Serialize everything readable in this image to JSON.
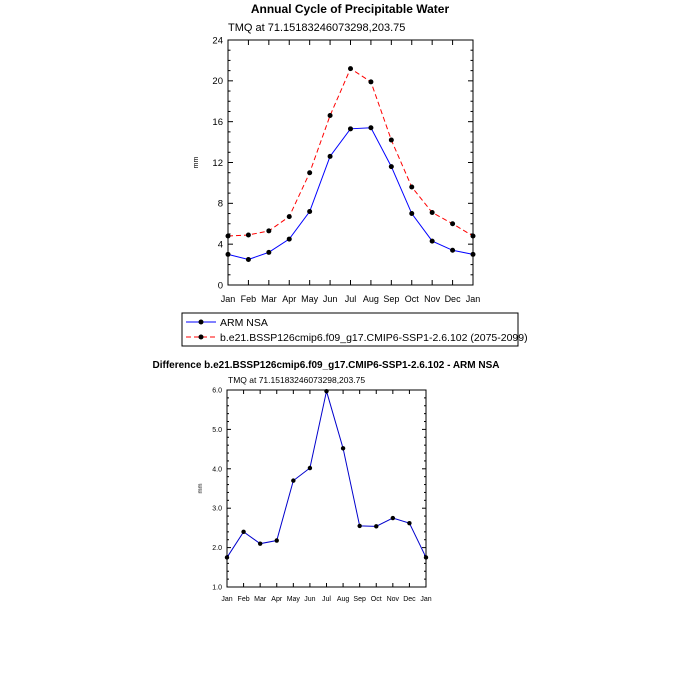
{
  "chart_data": [
    {
      "type": "line",
      "title": "Annual Cycle of Precipitable Water",
      "subtitle": "TMQ at 71.15183246073298,203.75",
      "xlabel": "",
      "ylabel": "mm",
      "categories": [
        "Jan",
        "Feb",
        "Mar",
        "Apr",
        "May",
        "Jun",
        "Jul",
        "Aug",
        "Sep",
        "Oct",
        "Nov",
        "Dec",
        "Jan"
      ],
      "ylim": [
        0,
        24
      ],
      "yticks": [
        "0",
        "4",
        "8",
        "12",
        "16",
        "20",
        "24"
      ],
      "series": [
        {
          "name": "ARM NSA",
          "color": "#0000ff",
          "dash": "solid",
          "values": [
            3.0,
            2.5,
            3.2,
            4.5,
            7.2,
            12.6,
            15.3,
            15.4,
            11.6,
            7.0,
            4.3,
            3.4,
            3.0
          ]
        },
        {
          "name": "b.e21.BSSP126cmip6.f09_g17.CMIP6-SSP1-2.6.102 (2075-2099)",
          "color": "#ff0000",
          "dash": "dashed",
          "values": [
            4.8,
            4.9,
            5.3,
            6.7,
            11.0,
            16.6,
            21.2,
            19.9,
            14.2,
            9.6,
            7.1,
            6.0,
            4.8
          ]
        }
      ]
    },
    {
      "type": "line",
      "title": "Difference b.e21.BSSP126cmip6.f09_g17.CMIP6-SSP1-2.6.102 - ARM NSA",
      "subtitle": "TMQ at 71.15183246073298,203.75",
      "xlabel": "",
      "ylabel": "mm",
      "categories": [
        "Jan",
        "Feb",
        "Mar",
        "Apr",
        "May",
        "Jun",
        "Jul",
        "Aug",
        "Sep",
        "Oct",
        "Nov",
        "Dec",
        "Jan"
      ],
      "ylim": [
        1.0,
        6.0
      ],
      "yticks": [
        "1.0",
        "2.0",
        "3.0",
        "4.0",
        "5.0",
        "6.0"
      ],
      "series": [
        {
          "name": "Difference",
          "color": "#0000cc",
          "dash": "solid",
          "values": [
            1.75,
            2.4,
            2.1,
            2.18,
            3.7,
            4.02,
            5.97,
            4.52,
            2.55,
            2.54,
            2.75,
            2.62,
            1.75
          ]
        }
      ]
    }
  ]
}
